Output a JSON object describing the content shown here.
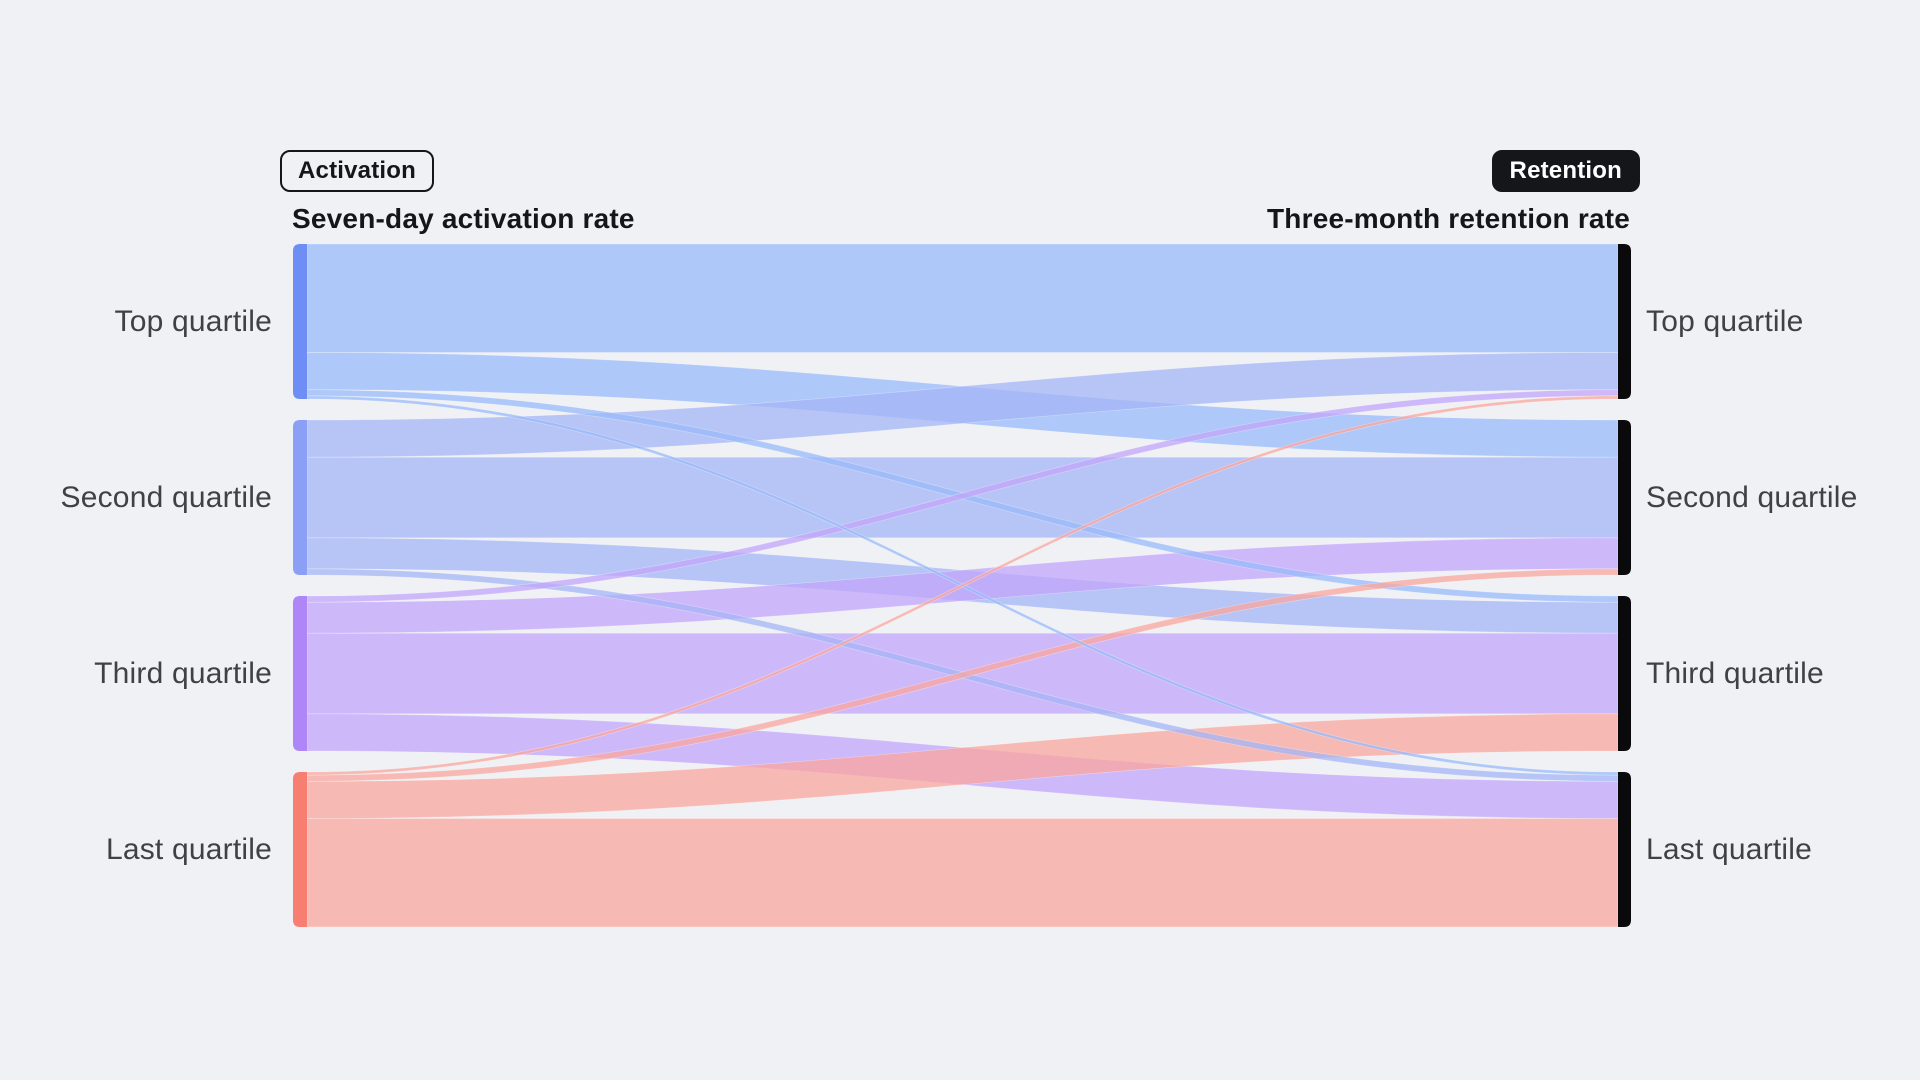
{
  "page": {
    "background": "#F0F1F5"
  },
  "header": {
    "left_badge": "Activation",
    "left_title": "Seven-day activation rate",
    "right_badge": "Retention",
    "right_title": "Three-month retention rate"
  },
  "chart_data": {
    "type": "sankey",
    "unit": "percent_of_source_node_total",
    "left_nodes": [
      "Top quartile",
      "Second quartile",
      "Third quartile",
      "Last quartile"
    ],
    "right_nodes": [
      "Top quartile",
      "Second quartile",
      "Third quartile",
      "Last quartile"
    ],
    "matrix_source_rows_to_target_cols": [
      [
        70,
        24,
        4,
        2
      ],
      [
        24,
        52,
        20,
        4
      ],
      [
        4,
        20,
        52,
        24
      ],
      [
        2,
        4,
        24,
        70
      ]
    ],
    "links": [
      {
        "source": "Top quartile",
        "target": "Top quartile",
        "value": 70
      },
      {
        "source": "Top quartile",
        "target": "Second quartile",
        "value": 24
      },
      {
        "source": "Top quartile",
        "target": "Third quartile",
        "value": 4
      },
      {
        "source": "Top quartile",
        "target": "Last quartile",
        "value": 2
      },
      {
        "source": "Second quartile",
        "target": "Top quartile",
        "value": 24
      },
      {
        "source": "Second quartile",
        "target": "Second quartile",
        "value": 52
      },
      {
        "source": "Second quartile",
        "target": "Third quartile",
        "value": 20
      },
      {
        "source": "Second quartile",
        "target": "Last quartile",
        "value": 4
      },
      {
        "source": "Third quartile",
        "target": "Top quartile",
        "value": 4
      },
      {
        "source": "Third quartile",
        "target": "Second quartile",
        "value": 20
      },
      {
        "source": "Third quartile",
        "target": "Third quartile",
        "value": 52
      },
      {
        "source": "Third quartile",
        "target": "Last quartile",
        "value": 24
      },
      {
        "source": "Last quartile",
        "target": "Top quartile",
        "value": 2
      },
      {
        "source": "Last quartile",
        "target": "Second quartile",
        "value": 4
      },
      {
        "source": "Last quartile",
        "target": "Third quartile",
        "value": 24
      },
      {
        "source": "Last quartile",
        "target": "Last quartile",
        "value": 70
      }
    ],
    "colors": {
      "flow_by_source": [
        "#98BAF9",
        "#A4B4F6",
        "#C1A6F9",
        "#F9A59E"
      ],
      "left_node_strip": [
        "#6E8EF5",
        "#8C9FF6",
        "#AE86F7",
        "#F87E72"
      ],
      "right_node_bar": "#0A0A0D",
      "background": "#F0F1F5",
      "label_text": "#3F4147",
      "header_text": "#15161A"
    },
    "layout_hints": {
      "node_count_per_side": 4,
      "equal_node_heights": true,
      "left_flow_order": "by_target_top_to_bottom",
      "right_flow_order": "by_source_top_to_bottom",
      "legend_position": "none"
    }
  }
}
